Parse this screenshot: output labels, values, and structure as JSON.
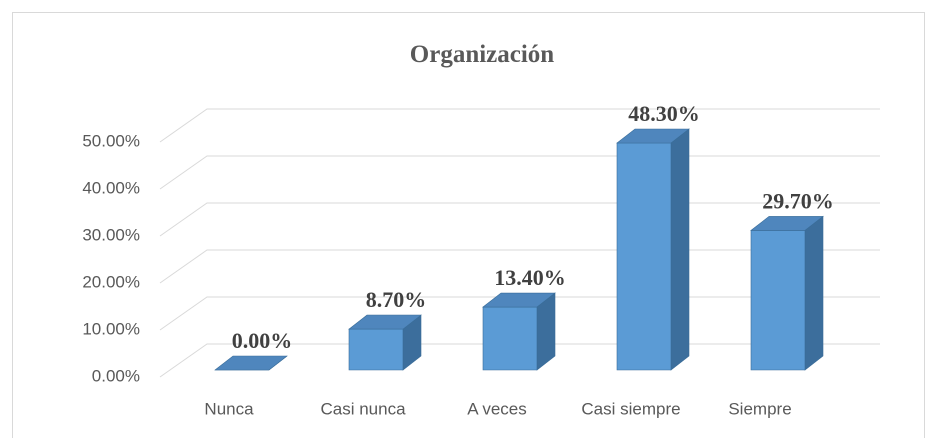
{
  "chart_data": {
    "type": "bar3d",
    "title": "Organización",
    "categories": [
      "Nunca",
      "Casi nunca",
      "A veces",
      "Casi siempre",
      "Siempre"
    ],
    "values": [
      0,
      8.7,
      13.4,
      48.3,
      29.7
    ],
    "value_labels": [
      "0.00%",
      "8.70%",
      "13.40%",
      "48.30%",
      "29.70%"
    ],
    "color": "#5b9bd5",
    "ylim": [
      0,
      50
    ],
    "yticks": [
      {
        "value": 0,
        "label": "0.00%"
      },
      {
        "value": 10,
        "label": "10.00%"
      },
      {
        "value": 20,
        "label": "20.00%"
      },
      {
        "value": 30,
        "label": "30.00%"
      },
      {
        "value": 40,
        "label": "40.00%"
      },
      {
        "value": 50,
        "label": "50.00%"
      }
    ],
    "grid": true
  }
}
